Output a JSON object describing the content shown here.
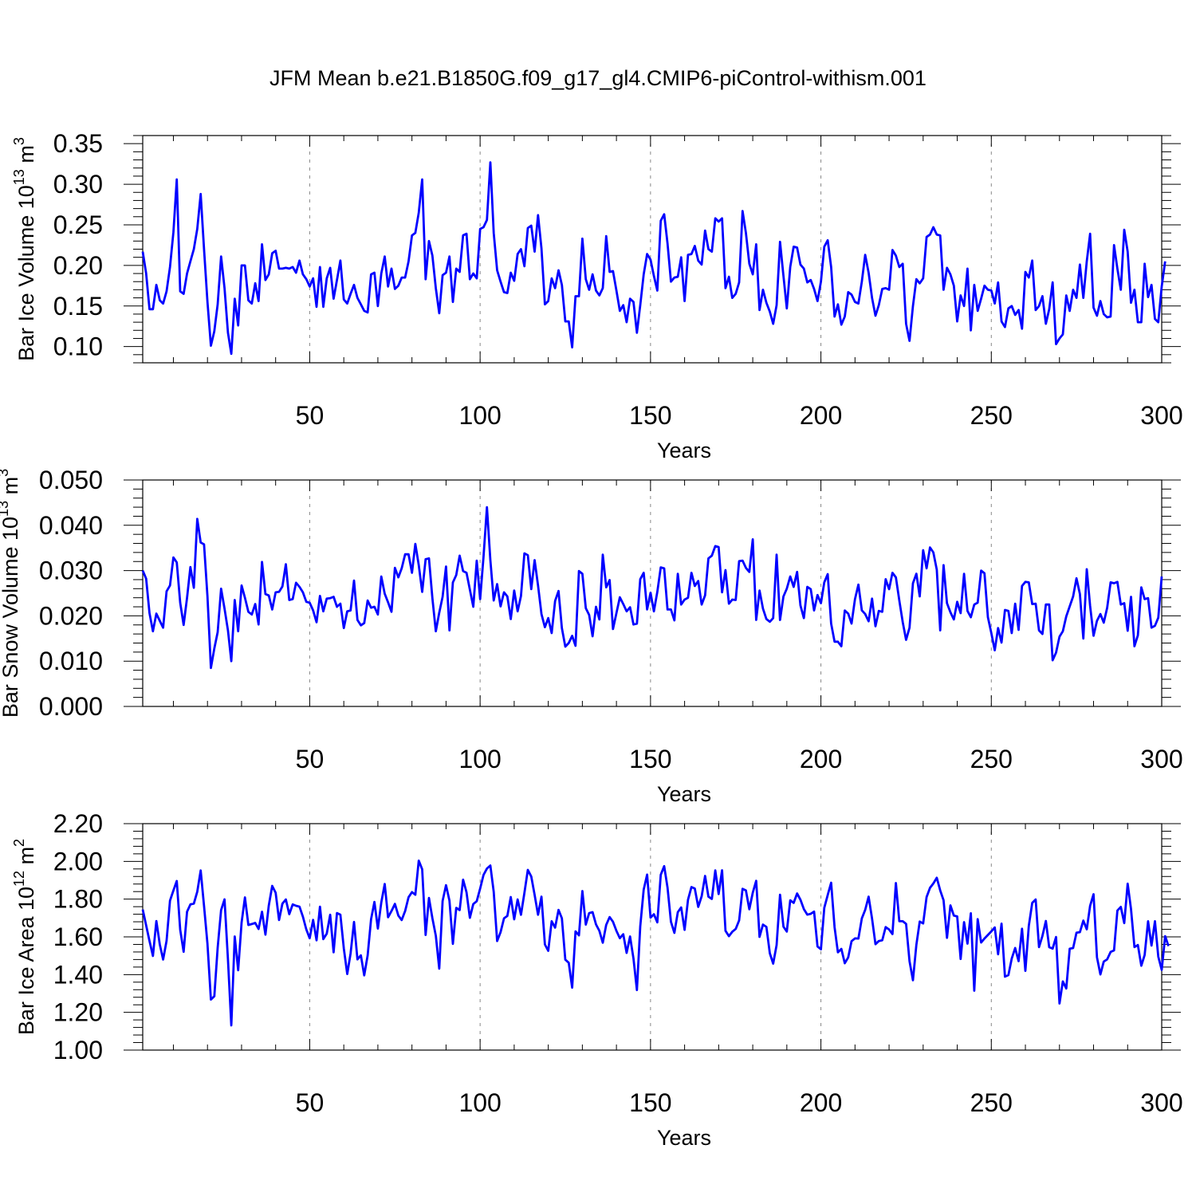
{
  "title": "JFM Mean b.e21.B1850G.f09_g17_gl4.CMIP6-piControl-withism.001",
  "chart_data": [
    {
      "type": "line",
      "ylabel": {
        "main": "Bar Ice Volume 10",
        "exp": "13",
        "unit": " m",
        "unit_exp": "3"
      },
      "xlabel": "Years",
      "xlim": [
        1,
        300
      ],
      "ylim": [
        0.08,
        0.36
      ],
      "yticks": [
        0.1,
        0.15,
        0.2,
        0.25,
        0.3,
        0.35
      ],
      "ytick_labels": [
        "0.10",
        "0.15",
        "0.20",
        "0.25",
        "0.30",
        "0.35"
      ],
      "xticks": [
        50,
        100,
        150,
        200,
        250,
        300
      ],
      "xtick_labels": [
        "50",
        "100",
        "150",
        "200",
        "250",
        "300"
      ],
      "grid": "vertical dashed at major x ticks",
      "color": "#0000ff",
      "y": [
        0.217,
        0.19,
        0.146,
        0.146,
        0.176,
        0.157,
        0.153,
        0.168,
        0.198,
        0.241,
        0.306,
        0.168,
        0.165,
        0.19,
        0.205,
        0.22,
        0.245,
        0.288,
        0.22,
        0.155,
        0.101,
        0.119,
        0.152,
        0.211,
        0.172,
        0.117,
        0.091,
        0.159,
        0.126,
        0.2,
        0.2,
        0.157,
        0.153,
        0.178,
        0.156,
        0.226,
        0.182,
        0.189,
        0.215,
        0.218,
        0.196,
        0.196,
        0.197,
        0.196,
        0.198,
        0.191,
        0.206,
        0.189,
        0.183,
        0.174,
        0.184,
        0.149,
        0.198,
        0.149,
        0.184,
        0.197,
        0.159,
        0.182,
        0.206,
        0.158,
        0.153,
        0.165,
        0.176,
        0.16,
        0.152,
        0.144,
        0.142,
        0.189,
        0.191,
        0.15,
        0.19,
        0.211,
        0.174,
        0.196,
        0.171,
        0.175,
        0.185,
        0.185,
        0.205,
        0.237,
        0.24,
        0.265,
        0.306,
        0.183,
        0.23,
        0.212,
        0.172,
        0.141,
        0.188,
        0.191,
        0.211,
        0.155,
        0.196,
        0.192,
        0.237,
        0.239,
        0.183,
        0.19,
        0.184,
        0.245,
        0.247,
        0.256,
        0.327,
        0.24,
        0.194,
        0.18,
        0.167,
        0.166,
        0.191,
        0.181,
        0.214,
        0.22,
        0.199,
        0.246,
        0.249,
        0.217,
        0.262,
        0.221,
        0.152,
        0.156,
        0.184,
        0.172,
        0.194,
        0.176,
        0.131,
        0.131,
        0.099,
        0.162,
        0.162,
        0.233,
        0.183,
        0.17,
        0.189,
        0.169,
        0.163,
        0.172,
        0.236,
        0.192,
        0.193,
        0.169,
        0.144,
        0.151,
        0.13,
        0.159,
        0.155,
        0.117,
        0.151,
        0.189,
        0.214,
        0.207,
        0.187,
        0.169,
        0.255,
        0.263,
        0.227,
        0.18,
        0.185,
        0.186,
        0.21,
        0.156,
        0.213,
        0.214,
        0.224,
        0.206,
        0.201,
        0.243,
        0.22,
        0.217,
        0.258,
        0.254,
        0.258,
        0.172,
        0.186,
        0.16,
        0.165,
        0.179,
        0.267,
        0.24,
        0.202,
        0.189,
        0.226,
        0.145,
        0.17,
        0.154,
        0.143,
        0.128,
        0.151,
        0.229,
        0.187,
        0.147,
        0.198,
        0.223,
        0.222,
        0.201,
        0.196,
        0.179,
        0.182,
        0.171,
        0.156,
        0.18,
        0.223,
        0.231,
        0.198,
        0.137,
        0.152,
        0.127,
        0.137,
        0.167,
        0.164,
        0.155,
        0.153,
        0.18,
        0.213,
        0.191,
        0.16,
        0.138,
        0.151,
        0.171,
        0.172,
        0.17,
        0.219,
        0.212,
        0.198,
        0.202,
        0.128,
        0.107,
        0.15,
        0.183,
        0.178,
        0.184,
        0.235,
        0.238,
        0.247,
        0.238,
        0.237,
        0.17,
        0.197,
        0.189,
        0.175,
        0.131,
        0.163,
        0.15,
        0.196,
        0.12,
        0.176,
        0.144,
        0.159,
        0.175,
        0.17,
        0.169,
        0.153,
        0.179,
        0.131,
        0.124,
        0.147,
        0.15,
        0.139,
        0.145,
        0.122,
        0.192,
        0.185,
        0.206,
        0.145,
        0.15,
        0.162,
        0.128,
        0.146,
        0.179,
        0.103,
        0.11,
        0.115,
        0.163,
        0.144,
        0.17,
        0.16,
        0.201,
        0.16,
        0.205,
        0.239,
        0.148,
        0.138,
        0.156,
        0.14,
        0.136,
        0.137,
        0.225,
        0.196,
        0.17,
        0.244,
        0.217,
        0.154,
        0.17,
        0.13,
        0.13,
        0.202,
        0.161,
        0.176,
        0.134,
        0.13,
        0.174,
        0.205
      ]
    },
    {
      "type": "line",
      "ylabel": {
        "main": "Bar Snow Volume 10",
        "exp": "13",
        "unit": " m",
        "unit_exp": "3"
      },
      "xlabel": "Years",
      "xlim": [
        1,
        300
      ],
      "ylim": [
        0.0,
        0.05
      ],
      "yticks": [
        0.0,
        0.01,
        0.02,
        0.03,
        0.04,
        0.05
      ],
      "ytick_labels": [
        "0.000",
        "0.010",
        "0.020",
        "0.030",
        "0.040",
        "0.050"
      ],
      "xticks": [
        50,
        100,
        150,
        200,
        250,
        300
      ],
      "xtick_labels": [
        "50",
        "100",
        "150",
        "200",
        "250",
        "300"
      ],
      "grid": "vertical dashed at major x ticks",
      "color": "#0000ff",
      "y": [
        0.03,
        0.0282,
        0.0206,
        0.0166,
        0.0205,
        0.0189,
        0.0174,
        0.0254,
        0.0267,
        0.0329,
        0.0318,
        0.0229,
        0.018,
        0.024,
        0.0308,
        0.0262,
        0.0414,
        0.0362,
        0.0358,
        0.0243,
        0.0085,
        0.0128,
        0.0164,
        0.026,
        0.0216,
        0.0168,
        0.01,
        0.0235,
        0.0166,
        0.0267,
        0.024,
        0.0209,
        0.0203,
        0.0226,
        0.0181,
        0.0319,
        0.0248,
        0.0245,
        0.0214,
        0.0252,
        0.0253,
        0.0265,
        0.0314,
        0.0235,
        0.0237,
        0.0273,
        0.0264,
        0.0252,
        0.0231,
        0.0229,
        0.0212,
        0.0186,
        0.0244,
        0.021,
        0.0238,
        0.0239,
        0.0242,
        0.022,
        0.0227,
        0.0173,
        0.021,
        0.0212,
        0.0278,
        0.0191,
        0.0179,
        0.0184,
        0.0234,
        0.0218,
        0.022,
        0.0203,
        0.0287,
        0.0249,
        0.023,
        0.0209,
        0.0306,
        0.0285,
        0.0305,
        0.0336,
        0.0336,
        0.0295,
        0.0359,
        0.0312,
        0.0253,
        0.0325,
        0.0327,
        0.0239,
        0.0166,
        0.0207,
        0.0242,
        0.0309,
        0.0168,
        0.0274,
        0.029,
        0.0333,
        0.0299,
        0.0295,
        0.0258,
        0.022,
        0.0322,
        0.0237,
        0.033,
        0.044,
        0.0323,
        0.0234,
        0.027,
        0.0221,
        0.0252,
        0.0243,
        0.0193,
        0.0256,
        0.021,
        0.0244,
        0.0338,
        0.0334,
        0.0259,
        0.0323,
        0.0267,
        0.0204,
        0.0175,
        0.0195,
        0.0162,
        0.0233,
        0.0255,
        0.0173,
        0.0132,
        0.014,
        0.0156,
        0.0134,
        0.0299,
        0.0293,
        0.0217,
        0.0202,
        0.0155,
        0.022,
        0.0192,
        0.0335,
        0.0263,
        0.0279,
        0.0171,
        0.0206,
        0.0241,
        0.0226,
        0.021,
        0.0219,
        0.0181,
        0.0183,
        0.0281,
        0.0295,
        0.0214,
        0.0251,
        0.021,
        0.0253,
        0.0307,
        0.0305,
        0.0214,
        0.0214,
        0.019,
        0.0293,
        0.0225,
        0.0236,
        0.024,
        0.0295,
        0.0266,
        0.0277,
        0.0225,
        0.0245,
        0.0327,
        0.0333,
        0.0354,
        0.0352,
        0.0252,
        0.0301,
        0.0227,
        0.0236,
        0.0235,
        0.0321,
        0.0322,
        0.0306,
        0.0297,
        0.0369,
        0.0191,
        0.0256,
        0.0216,
        0.0193,
        0.0187,
        0.0195,
        0.0335,
        0.0191,
        0.0243,
        0.026,
        0.0287,
        0.0264,
        0.0297,
        0.0223,
        0.0195,
        0.0264,
        0.0259,
        0.0212,
        0.0246,
        0.0228,
        0.0274,
        0.0292,
        0.0183,
        0.0143,
        0.0143,
        0.0133,
        0.0212,
        0.0205,
        0.0183,
        0.0237,
        0.0269,
        0.0212,
        0.0204,
        0.0188,
        0.0238,
        0.0177,
        0.0211,
        0.0209,
        0.0281,
        0.0259,
        0.0295,
        0.0285,
        0.0234,
        0.0186,
        0.0147,
        0.0174,
        0.0272,
        0.0293,
        0.0243,
        0.0345,
        0.0305,
        0.0351,
        0.034,
        0.0302,
        0.0168,
        0.0312,
        0.0228,
        0.0208,
        0.0192,
        0.0231,
        0.0206,
        0.0293,
        0.0211,
        0.0197,
        0.0225,
        0.0229,
        0.03,
        0.0294,
        0.0197,
        0.0162,
        0.0124,
        0.0173,
        0.0141,
        0.0213,
        0.0211,
        0.0162,
        0.0227,
        0.0169,
        0.0266,
        0.0275,
        0.0274,
        0.0226,
        0.0227,
        0.0168,
        0.016,
        0.0225,
        0.0225,
        0.0102,
        0.0119,
        0.0154,
        0.0166,
        0.0199,
        0.0221,
        0.0243,
        0.0283,
        0.0248,
        0.015,
        0.0303,
        0.0222,
        0.0156,
        0.0189,
        0.0204,
        0.0185,
        0.0218,
        0.0274,
        0.0272,
        0.0275,
        0.0225,
        0.0228,
        0.0167,
        0.0242,
        0.0133,
        0.0157,
        0.0263,
        0.0237,
        0.0239,
        0.0174,
        0.0178,
        0.0196,
        0.0287
      ]
    },
    {
      "type": "line",
      "ylabel": {
        "main": "Bar Ice Area 10",
        "exp": "12",
        "unit": " m",
        "unit_exp": "2"
      },
      "xlabel": "Years",
      "xlim": [
        1,
        300
      ],
      "ylim": [
        1.0,
        2.2
      ],
      "yticks": [
        1.0,
        1.2,
        1.4,
        1.6,
        1.8,
        2.0,
        2.2
      ],
      "ytick_labels": [
        "1.00",
        "1.20",
        "1.40",
        "1.60",
        "1.80",
        "2.00",
        "2.20"
      ],
      "xticks": [
        50,
        100,
        150,
        200,
        250,
        300
      ],
      "xtick_labels": [
        "50",
        "100",
        "150",
        "200",
        "250",
        "300"
      ],
      "grid": "vertical dashed at major x ticks",
      "color": "#0000ff",
      "y": [
        1.745,
        1.661,
        1.578,
        1.499,
        1.684,
        1.56,
        1.48,
        1.579,
        1.792,
        1.846,
        1.896,
        1.638,
        1.521,
        1.733,
        1.772,
        1.776,
        1.839,
        1.952,
        1.764,
        1.563,
        1.268,
        1.285,
        1.543,
        1.742,
        1.799,
        1.48,
        1.131,
        1.602,
        1.423,
        1.676,
        1.809,
        1.663,
        1.668,
        1.674,
        1.642,
        1.733,
        1.612,
        1.766,
        1.87,
        1.834,
        1.689,
        1.776,
        1.798,
        1.72,
        1.772,
        1.765,
        1.76,
        1.707,
        1.639,
        1.593,
        1.69,
        1.582,
        1.76,
        1.588,
        1.617,
        1.717,
        1.518,
        1.726,
        1.718,
        1.539,
        1.403,
        1.512,
        1.679,
        1.481,
        1.502,
        1.396,
        1.502,
        1.694,
        1.785,
        1.644,
        1.782,
        1.88,
        1.704,
        1.737,
        1.775,
        1.713,
        1.689,
        1.737,
        1.81,
        1.837,
        1.823,
        2.004,
        1.958,
        1.61,
        1.806,
        1.699,
        1.606,
        1.432,
        1.79,
        1.874,
        1.792,
        1.563,
        1.754,
        1.742,
        1.903,
        1.836,
        1.701,
        1.774,
        1.789,
        1.856,
        1.928,
        1.962,
        1.978,
        1.839,
        1.578,
        1.625,
        1.698,
        1.711,
        1.811,
        1.693,
        1.798,
        1.717,
        1.833,
        1.955,
        1.92,
        1.823,
        1.717,
        1.813,
        1.56,
        1.526,
        1.683,
        1.649,
        1.743,
        1.699,
        1.479,
        1.463,
        1.331,
        1.629,
        1.608,
        1.843,
        1.665,
        1.726,
        1.731,
        1.666,
        1.632,
        1.569,
        1.664,
        1.705,
        1.68,
        1.632,
        1.593,
        1.614,
        1.515,
        1.602,
        1.485,
        1.318,
        1.656,
        1.85,
        1.93,
        1.702,
        1.72,
        1.677,
        1.929,
        1.975,
        1.861,
        1.68,
        1.621,
        1.731,
        1.756,
        1.637,
        1.797,
        1.864,
        1.856,
        1.759,
        1.815,
        1.923,
        1.813,
        1.801,
        1.952,
        1.827,
        1.953,
        1.632,
        1.604,
        1.627,
        1.642,
        1.687,
        1.855,
        1.846,
        1.746,
        1.834,
        1.897,
        1.6,
        1.665,
        1.653,
        1.513,
        1.458,
        1.557,
        1.823,
        1.654,
        1.628,
        1.794,
        1.78,
        1.83,
        1.797,
        1.747,
        1.718,
        1.722,
        1.734,
        1.549,
        1.534,
        1.754,
        1.822,
        1.887,
        1.651,
        1.518,
        1.536,
        1.46,
        1.491,
        1.577,
        1.592,
        1.591,
        1.698,
        1.743,
        1.813,
        1.697,
        1.561,
        1.578,
        1.582,
        1.652,
        1.639,
        1.615,
        1.885,
        1.683,
        1.683,
        1.669,
        1.471,
        1.37,
        1.558,
        1.681,
        1.671,
        1.811,
        1.86,
        1.883,
        1.913,
        1.846,
        1.794,
        1.595,
        1.767,
        1.713,
        1.708,
        1.483,
        1.678,
        1.564,
        1.725,
        1.315,
        1.694,
        1.57,
        1.591,
        1.61,
        1.629,
        1.65,
        1.508,
        1.67,
        1.389,
        1.397,
        1.485,
        1.541,
        1.471,
        1.643,
        1.42,
        1.658,
        1.78,
        1.798,
        1.546,
        1.605,
        1.684,
        1.545,
        1.538,
        1.599,
        1.247,
        1.364,
        1.326,
        1.537,
        1.541,
        1.622,
        1.625,
        1.686,
        1.64,
        1.765,
        1.826,
        1.492,
        1.401,
        1.469,
        1.481,
        1.52,
        1.528,
        1.739,
        1.759,
        1.673,
        1.882,
        1.747,
        1.546,
        1.557,
        1.447,
        1.504,
        1.683,
        1.554,
        1.683,
        1.495,
        1.425,
        1.604,
        1.551
      ]
    }
  ]
}
